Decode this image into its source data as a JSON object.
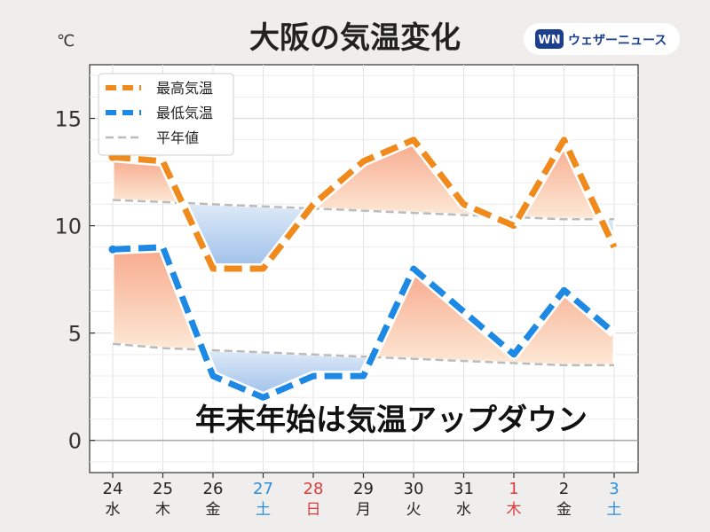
{
  "chart_data": {
    "type": "line",
    "title": "大阪の気温変化",
    "unit_label": "℃",
    "brand": "ウェザーニュース",
    "brand_logo_text": "WN",
    "annotation": "年末年始は気温アップダウン",
    "ylim": [
      -1.5,
      17.5
    ],
    "yticks": [
      0,
      5,
      10,
      15
    ],
    "grid": true,
    "legend_position": "top-left",
    "categories": [
      {
        "day": "24",
        "weekday": "水",
        "color": "#222222"
      },
      {
        "day": "25",
        "weekday": "木",
        "color": "#222222"
      },
      {
        "day": "26",
        "weekday": "金",
        "color": "#222222"
      },
      {
        "day": "27",
        "weekday": "土",
        "color": "#2a8ee0"
      },
      {
        "day": "28",
        "weekday": "日",
        "color": "#e03a3a"
      },
      {
        "day": "29",
        "weekday": "月",
        "color": "#222222"
      },
      {
        "day": "30",
        "weekday": "火",
        "color": "#222222"
      },
      {
        "day": "31",
        "weekday": "水",
        "color": "#222222"
      },
      {
        "day": "1",
        "weekday": "木",
        "color": "#e03a3a"
      },
      {
        "day": "2",
        "weekday": "金",
        "color": "#222222"
      },
      {
        "day": "3",
        "weekday": "土",
        "color": "#2a8ee0"
      }
    ],
    "series": [
      {
        "name": "最高気温",
        "color": "#f08a1c",
        "style": "dashed-thick",
        "values": [
          13.2,
          13.0,
          8.0,
          8.0,
          11.0,
          13.0,
          14.0,
          11.0,
          10.0,
          14.0,
          9.0
        ],
        "normal": [
          11.2,
          11.1,
          11.0,
          10.9,
          10.8,
          10.7,
          10.6,
          10.5,
          10.4,
          10.3,
          10.3
        ]
      },
      {
        "name": "最低気温",
        "color": "#1e88e5",
        "style": "dashed-thick",
        "values": [
          8.9,
          9.0,
          3.0,
          2.0,
          3.0,
          3.0,
          8.0,
          6.0,
          4.0,
          7.0,
          5.0
        ],
        "normal": [
          4.5,
          4.3,
          4.2,
          4.1,
          4.0,
          3.9,
          3.8,
          3.7,
          3.6,
          3.5,
          3.5
        ]
      }
    ],
    "legend": [
      {
        "label": "最高気温",
        "color": "#f08a1c"
      },
      {
        "label": "最低気温",
        "color": "#1e88e5"
      },
      {
        "label": "平年値",
        "color": "#bbbbbb"
      }
    ]
  }
}
